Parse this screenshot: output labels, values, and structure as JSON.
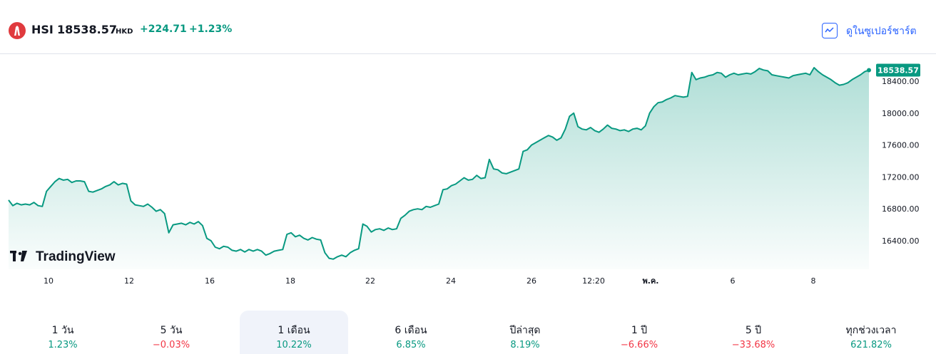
{
  "header": {
    "symbol": "HSI",
    "price": "18538.57",
    "currency": "HKD",
    "change": "+224.71",
    "change_percent": "+1.23%",
    "supercharts_label": "ดูในซูเปอร์ชาร์ต",
    "supercharts_icon": "chart-line-icon",
    "logo_icon": "hsi-logo-icon"
  },
  "colors": {
    "line": "#089981",
    "up": "#089981",
    "down": "#f23645",
    "link": "#2962ff"
  },
  "chart_data": {
    "type": "area",
    "series": [
      {
        "values": [
          16910,
          16840,
          16870,
          16850,
          16860,
          16850,
          16880,
          16840,
          16830,
          17020,
          17080,
          17140,
          17180,
          17160,
          17170,
          17130,
          17150,
          17150,
          17140,
          17020,
          17010,
          17030,
          17050,
          17080,
          17100,
          17140,
          17100,
          17120,
          17110,
          16900,
          16850,
          16840,
          16830,
          16860,
          16820,
          16770,
          16790,
          16740,
          16500,
          16600,
          16610,
          16620,
          16600,
          16630,
          16610,
          16640,
          16590,
          16430,
          16400,
          16320,
          16300,
          16330,
          16320,
          16280,
          16270,
          16290,
          16260,
          16290,
          16270,
          16290,
          16270,
          16220,
          16240,
          16270,
          16280,
          16290,
          16480,
          16500,
          16450,
          16470,
          16430,
          16410,
          16440,
          16420,
          16410,
          16250,
          16180,
          16170,
          16200,
          16220,
          16200,
          16250,
          16280,
          16300,
          16610,
          16580,
          16510,
          16540,
          16550,
          16530,
          16560,
          16540,
          16550,
          16680,
          16720,
          16770,
          16790,
          16800,
          16790,
          16830,
          16820,
          16840,
          16860,
          17040,
          17050,
          17090,
          17110,
          17150,
          17190,
          17160,
          17170,
          17220,
          17180,
          17190,
          17420,
          17300,
          17290,
          17250,
          17240,
          17260,
          17280,
          17300,
          17520,
          17540,
          17600,
          17630,
          17660,
          17690,
          17720,
          17700,
          17660,
          17690,
          17800,
          17960,
          18000,
          17830,
          17800,
          17790,
          17820,
          17780,
          17760,
          17800,
          17850,
          17810,
          17800,
          17780,
          17790,
          17770,
          17800,
          17810,
          17790,
          17840,
          18000,
          18080,
          18130,
          18140,
          18170,
          18190,
          18220,
          18210,
          18200,
          18210,
          18510,
          18420,
          18440,
          18450,
          18470,
          18480,
          18510,
          18500,
          18450,
          18480,
          18500,
          18480,
          18490,
          18500,
          18490,
          18520,
          18560,
          18540,
          18530,
          18480,
          18470,
          18460,
          18450,
          18440,
          18470,
          18480,
          18490,
          18500,
          18480,
          18570,
          18520,
          18480,
          18450,
          18420,
          18380,
          18350,
          18360,
          18380,
          18420,
          18450,
          18480,
          18520,
          18538.57
        ]
      }
    ],
    "x_tick_labels": [
      "10",
      "12",
      "16",
      "18",
      "22",
      "24",
      "26",
      "12:20",
      "พ.ค.",
      "6",
      "8"
    ],
    "y_tick_labels": [
      "16400.00",
      "16800.00",
      "17200.00",
      "17600.00",
      "18000.00",
      "18400.00"
    ],
    "y_ticks": [
      16400,
      16800,
      17200,
      17600,
      18000,
      18400
    ],
    "ylim": [
      16200,
      18600
    ],
    "last_value_label": "18538.57",
    "grid": false,
    "watermark": "TradingView"
  },
  "periods": [
    {
      "label": "1 วัน",
      "value": "1.23%",
      "dir": "up"
    },
    {
      "label": "5 วัน",
      "value": "−0.03%",
      "dir": "down"
    },
    {
      "label": "1 เดือน",
      "value": "10.22%",
      "dir": "up",
      "selected": true
    },
    {
      "label": "6 เดือน",
      "value": "6.85%",
      "dir": "up"
    },
    {
      "label": "ปีล่าสุด",
      "value": "8.19%",
      "dir": "up"
    },
    {
      "label": "1 ปี",
      "value": "−6.66%",
      "dir": "down"
    },
    {
      "label": "5 ปี",
      "value": "−33.68%",
      "dir": "down"
    },
    {
      "label": "ทุกช่วงเวลา",
      "value": "621.82%",
      "dir": "up"
    }
  ]
}
